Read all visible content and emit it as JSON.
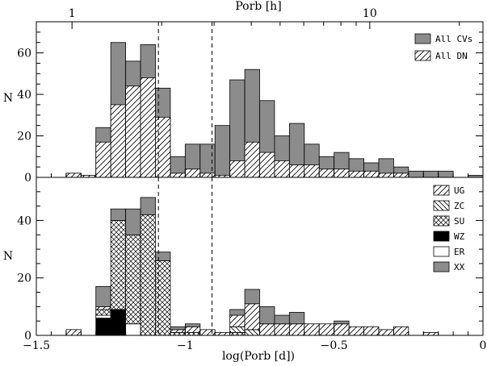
{
  "chart_data": [
    {
      "type": "bar",
      "title": "",
      "top_axis": {
        "label": "Porb [h]",
        "ticks": [
          "1",
          "10"
        ],
        "tick_values_h": [
          1,
          10
        ]
      },
      "xlabel": "",
      "ylabel": "N",
      "xlim": [
        -1.5,
        0
      ],
      "ylim": [
        0,
        75
      ],
      "yticks": [
        0,
        20,
        40,
        60
      ],
      "bin_width": 0.05,
      "vertical_lines": [
        -1.09,
        -0.91
      ],
      "bin_start": [
        -1.4,
        -1.35,
        -1.3,
        -1.25,
        -1.2,
        -1.15,
        -1.1,
        -1.05,
        -1.0,
        -0.95,
        -0.9,
        -0.85,
        -0.8,
        -0.75,
        -0.7,
        -0.65,
        -0.6,
        -0.55,
        -0.5,
        -0.45,
        -0.4,
        -0.35,
        -0.3,
        -0.25,
        -0.2,
        -0.15,
        -0.1,
        -0.05
      ],
      "series": [
        {
          "name": "All CVs",
          "values": [
            2,
            1,
            24,
            65,
            56,
            64,
            43,
            10,
            16,
            16,
            25,
            47,
            52,
            37,
            20,
            26,
            16,
            10,
            12,
            9,
            7,
            9,
            5,
            3,
            3,
            3,
            0,
            1
          ],
          "style": "filled gray"
        },
        {
          "name": "All DN",
          "values": [
            2,
            1,
            17,
            35,
            44,
            48,
            29,
            2,
            4,
            2,
            1,
            8,
            17,
            12,
            8,
            6,
            6,
            4,
            4,
            3,
            3,
            2,
            2,
            0,
            0,
            0,
            0,
            0
          ],
          "style": "hatched"
        }
      ],
      "legend_position": "top-right"
    },
    {
      "type": "bar",
      "title": "",
      "xlabel": "log(Porb [d])",
      "ylabel": "N",
      "xlim": [
        -1.5,
        0
      ],
      "ylim": [
        0,
        55
      ],
      "yticks": [
        0,
        20,
        40
      ],
      "xticks": [
        -1.5,
        -1,
        -0.5,
        0
      ],
      "xtick_labels": [
        "−1.5",
        "−1",
        "−0.5",
        "0"
      ],
      "bin_width": 0.05,
      "vertical_lines": [
        -1.09,
        -0.91
      ],
      "bin_start": [
        -1.4,
        -1.35,
        -1.3,
        -1.25,
        -1.2,
        -1.15,
        -1.1,
        -1.05,
        -1.0,
        -0.95,
        -0.9,
        -0.85,
        -0.8,
        -0.75,
        -0.7,
        -0.65,
        -0.6,
        -0.55,
        -0.5,
        -0.45,
        -0.4,
        -0.35,
        -0.3,
        -0.25,
        -0.2,
        -0.15,
        -0.1,
        -0.05
      ],
      "series": [
        {
          "name": "WZ",
          "values": [
            0,
            0,
            6,
            9,
            0,
            0,
            0,
            0,
            0,
            0,
            0,
            0,
            0,
            0,
            0,
            0,
            0,
            0,
            0,
            0,
            0,
            0,
            0,
            0,
            0,
            0,
            0,
            0
          ],
          "style": "black"
        },
        {
          "name": "ER",
          "values": [
            0,
            0,
            1,
            0,
            4,
            0,
            0,
            0,
            0,
            0,
            0,
            0,
            0,
            0,
            0,
            0,
            0,
            0,
            0,
            0,
            0,
            0,
            0,
            0,
            0,
            0,
            0,
            0
          ],
          "style": "white"
        },
        {
          "name": "SU",
          "values": [
            0,
            0,
            2,
            31,
            31,
            42,
            26,
            1,
            1,
            0,
            0,
            1,
            0,
            0,
            0,
            0,
            0,
            0,
            0,
            0,
            0,
            0,
            0,
            0,
            0,
            0,
            0,
            0
          ],
          "style": "cross-hatched"
        },
        {
          "name": "ZC",
          "values": [
            0,
            0,
            0,
            0,
            0,
            0,
            0,
            0,
            0,
            0,
            0,
            2,
            2,
            0,
            0,
            0,
            0,
            0,
            0,
            0,
            0,
            0,
            0,
            0,
            0,
            0,
            0,
            0
          ],
          "style": "back-hatched"
        },
        {
          "name": "UG",
          "values": [
            2,
            0,
            1,
            0,
            0,
            0,
            0,
            1,
            2,
            2,
            1,
            4,
            9,
            4,
            4,
            4,
            4,
            4,
            4,
            3,
            3,
            2,
            3,
            0,
            1,
            0,
            0,
            0
          ],
          "style": "hatched"
        },
        {
          "name": "XX",
          "values": [
            0,
            0,
            7,
            4,
            9,
            6,
            3,
            1,
            1,
            0,
            0,
            2,
            5,
            6,
            3,
            4,
            0,
            0,
            1,
            0,
            0,
            0,
            0,
            0,
            0,
            0,
            0,
            0
          ],
          "style": "filled gray"
        }
      ],
      "legend_order": [
        "UG",
        "ZC",
        "SU",
        "WZ",
        "ER",
        "XX"
      ],
      "legend_position": "top-right"
    }
  ]
}
